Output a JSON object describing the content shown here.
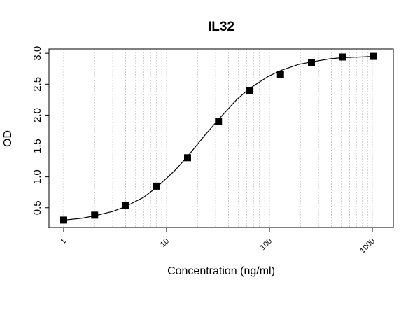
{
  "chart_data": {
    "type": "scatter",
    "title": "IL32",
    "x_label": "Concentration (ng/ml)",
    "y_label": "OD",
    "x": [
      1,
      2,
      4,
      8,
      16,
      32,
      64,
      128,
      256,
      512,
      1024
    ],
    "values": [
      0.3,
      0.38,
      0.54,
      0.85,
      1.31,
      1.9,
      2.39,
      2.66,
      2.85,
      2.94,
      2.95
    ],
    "color": "#000000",
    "curve": {
      "x": [
        1,
        1.5,
        2,
        3,
        4,
        6,
        8,
        12,
        16,
        24,
        32,
        48,
        64,
        96,
        128,
        192,
        256,
        384,
        512,
        768,
        1024
      ],
      "values": [
        0.3,
        0.33,
        0.37,
        0.44,
        0.52,
        0.67,
        0.83,
        1.1,
        1.33,
        1.69,
        1.93,
        2.25,
        2.43,
        2.62,
        2.72,
        2.82,
        2.86,
        2.91,
        2.93,
        2.94,
        2.95
      ]
    },
    "xscale": "log",
    "xlim": [
      0.72,
      1600
    ],
    "ylim": [
      0.18,
      3.07
    ],
    "xticks": [
      1,
      10,
      100,
      1000
    ],
    "yticks": [
      0.5,
      {
        "value": 1,
        "label": "1.0"
      },
      1.5,
      {
        "value": 2,
        "label": "2.0"
      },
      2.5,
      {
        "value": 3,
        "label": "3.0"
      }
    ],
    "xgrid": [
      1,
      2,
      3,
      4,
      5,
      6,
      7,
      8,
      9,
      10,
      20,
      30,
      40,
      50,
      60,
      70,
      80,
      90,
      100,
      200,
      300,
      400,
      500,
      600,
      700,
      800,
      900,
      1000
    ],
    "grid": true
  }
}
